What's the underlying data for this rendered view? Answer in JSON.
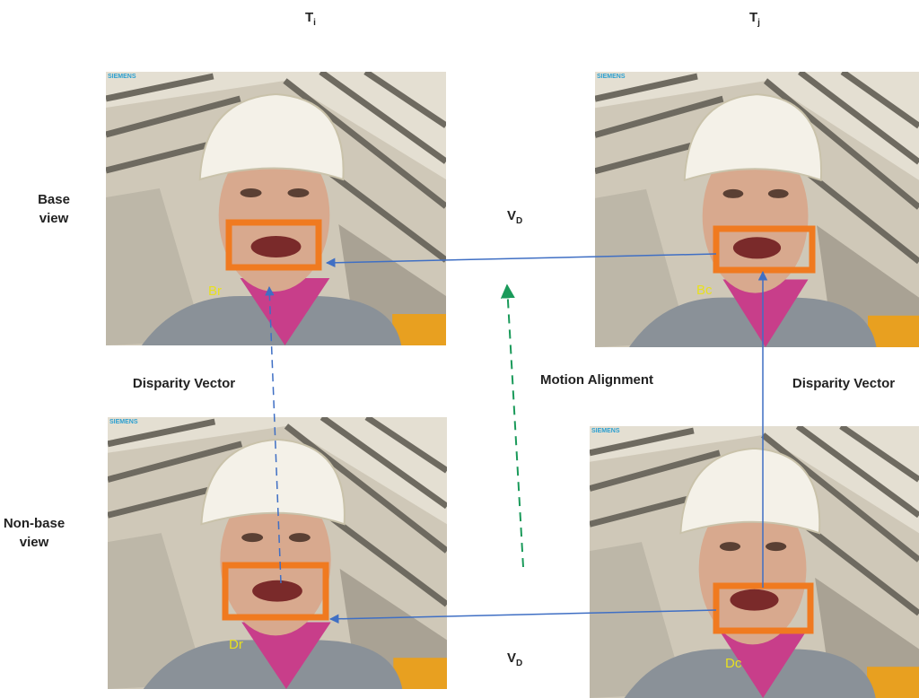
{
  "columns": [
    {
      "base": "T",
      "sub": "i"
    },
    {
      "base": "T",
      "sub": "j"
    }
  ],
  "rows": [
    [
      "Base",
      "view"
    ],
    [
      "Non-base",
      "view"
    ]
  ],
  "vectors": [
    {
      "base": "V",
      "sub": "D"
    },
    {
      "base": "V",
      "sub": "D"
    }
  ],
  "arrow_labels": {
    "left": "Disparity Vector",
    "middle": "Motion Alignment",
    "right": "Disparity Vector"
  },
  "blocks": [
    "Br",
    "Bc",
    "Dr",
    "Dc"
  ],
  "logo": "SIEMENS"
}
